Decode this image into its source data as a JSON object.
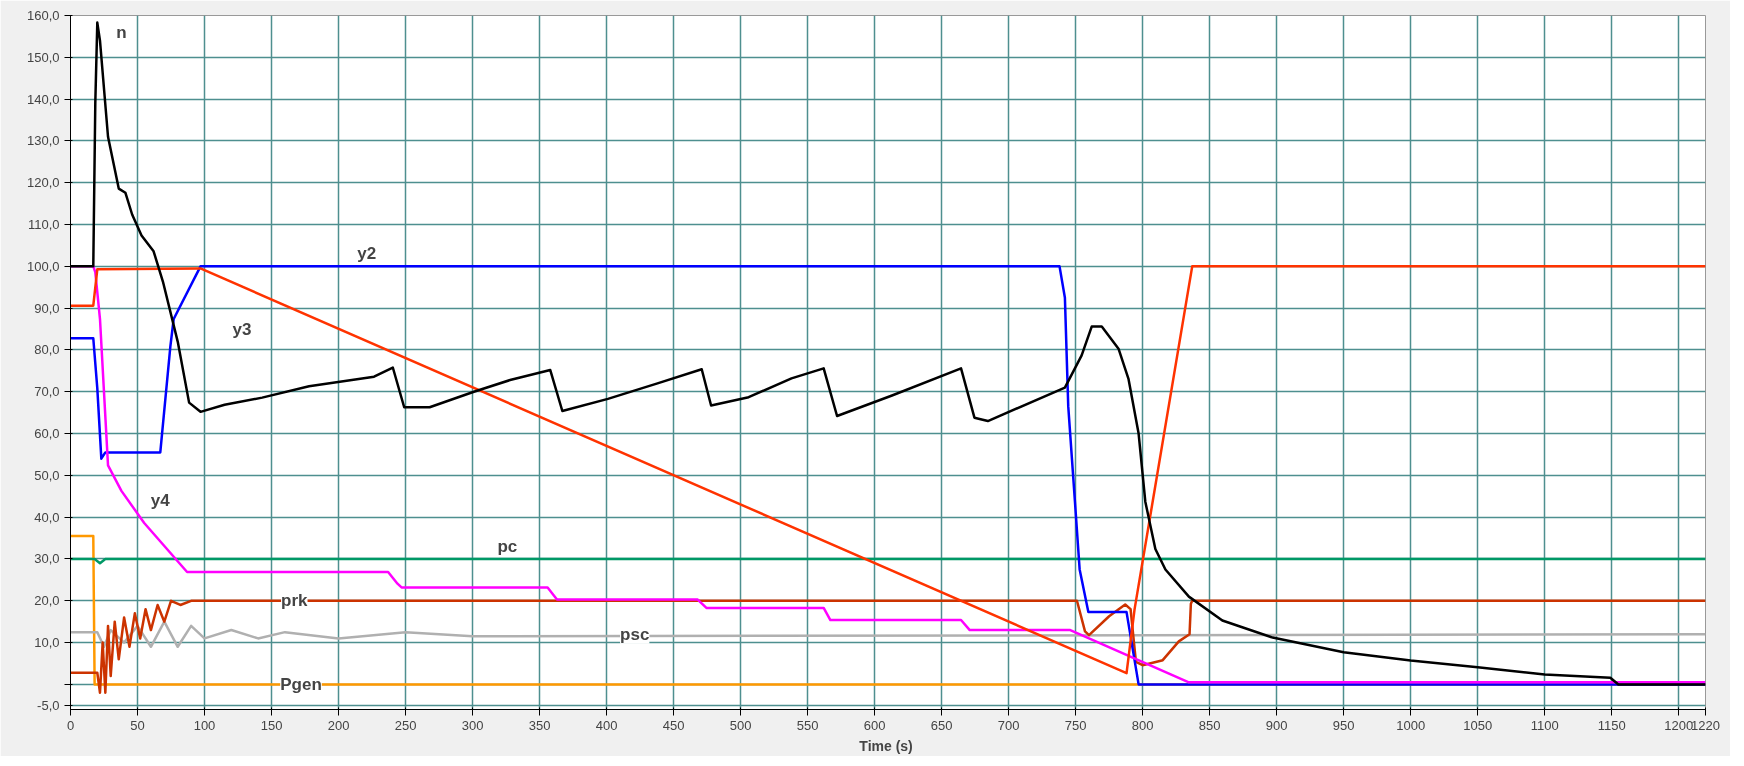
{
  "chart_data": {
    "type": "line",
    "xlabel": "Time  (s)",
    "grid": true,
    "marker": "none",
    "line_style": "solid",
    "xlim": [
      0,
      1220
    ],
    "ylim": [
      -6,
      160
    ],
    "xticks": [
      0,
      50,
      100,
      150,
      200,
      250,
      300,
      350,
      400,
      450,
      500,
      550,
      600,
      650,
      700,
      750,
      800,
      850,
      900,
      950,
      1000,
      1050,
      1100,
      1150,
      1200,
      1220
    ],
    "yticks": [
      {
        "value": -5,
        "label": "-5,0"
      },
      {
        "value": 0,
        "label": null
      },
      {
        "value": 10,
        "label": "10,0"
      },
      {
        "value": 20,
        "label": "20,0"
      },
      {
        "value": 30,
        "label": "30,0"
      },
      {
        "value": 40,
        "label": "40,0"
      },
      {
        "value": 50,
        "label": "50,0"
      },
      {
        "value": 60,
        "label": "60,0"
      },
      {
        "value": 70,
        "label": "70,0"
      },
      {
        "value": 80,
        "label": "80,0"
      },
      {
        "value": 90,
        "label": "90,0"
      },
      {
        "value": 100,
        "label": "100,0"
      },
      {
        "value": 110,
        "label": "110,0"
      },
      {
        "value": 120,
        "label": "120,0"
      },
      {
        "value": 130,
        "label": "130,0"
      },
      {
        "value": 140,
        "label": "140,0"
      },
      {
        "value": 150,
        "label": "150,0"
      },
      {
        "value": 160,
        "label": "160,0"
      }
    ],
    "series": [
      {
        "name": "Pgen",
        "color": "#ff9900",
        "x": [
          0,
          17,
          18,
          1220
        ],
        "values": [
          35.5,
          35.5,
          0,
          0
        ]
      },
      {
        "name": "psc",
        "color": "#b0b0b0",
        "x": [
          0,
          20,
          25,
          30,
          40,
          50,
          60,
          70,
          80,
          90,
          100,
          120,
          140,
          160,
          200,
          250,
          300,
          1220
        ],
        "values": [
          12.5,
          12.5,
          9,
          13,
          10,
          14,
          9,
          15,
          9,
          14,
          11,
          13,
          11,
          12.5,
          11,
          12.5,
          11.5,
          12
        ]
      },
      {
        "name": "prk",
        "color": "#cc3300",
        "x": [
          0,
          17,
          20,
          22,
          24,
          26,
          28,
          30,
          33,
          36,
          40,
          44,
          48,
          52,
          56,
          60,
          65,
          70,
          75,
          82,
          90,
          751,
          757,
          760,
          775,
          787,
          791,
          795,
          800,
          815,
          827,
          835,
          836,
          837,
          1220
        ],
        "values": [
          2.8,
          2.8,
          2.8,
          -2,
          10,
          -2,
          14,
          2,
          15,
          6,
          16,
          9,
          17,
          11,
          18,
          13,
          19,
          15,
          20,
          19,
          20,
          20,
          12.7,
          11.8,
          16.3,
          19.1,
          18,
          5.4,
          4.6,
          5.8,
          10.3,
          12,
          19.3,
          20,
          20
        ]
      },
      {
        "name": "pc",
        "color": "#009966",
        "x": [
          0,
          18,
          22,
          26,
          1220
        ],
        "values": [
          30,
          30,
          29,
          30,
          30
        ]
      },
      {
        "name": "y2",
        "color": "#0000ff",
        "x": [
          0,
          17,
          20,
          23,
          26,
          67,
          74.5,
          77,
          97,
          738,
          742,
          744.5,
          749.5,
          753,
          759.5,
          788,
          797,
          1220
        ],
        "values": [
          82.8,
          82.8,
          70.8,
          54,
          55.5,
          55.5,
          80.8,
          87.4,
          100,
          100,
          92.5,
          66.5,
          43.7,
          27.5,
          17.3,
          17.3,
          0,
          0
        ]
      },
      {
        "name": "y4",
        "color": "#ff00ff",
        "x": [
          0,
          17,
          18.5,
          22,
          28,
          38,
          55,
          87,
          237,
          244,
          247,
          356,
          363,
          468,
          474.5,
          562,
          567,
          664.5,
          671,
          746,
          834.5,
          1220
        ],
        "values": [
          100,
          100,
          98.6,
          87.4,
          52.4,
          46.3,
          38.6,
          26.9,
          26.9,
          24.1,
          23.2,
          23.2,
          20.3,
          20.3,
          18.3,
          18.3,
          15.4,
          15.4,
          13,
          13,
          0.5,
          0.5
        ]
      },
      {
        "name": "y3",
        "color": "#ff3300",
        "x": [
          0,
          17,
          20,
          97,
          788,
          794,
          837,
          1220
        ],
        "values": [
          90.6,
          90.6,
          99.3,
          99.5,
          2.7,
          18,
          100,
          100
        ]
      },
      {
        "name": "n",
        "color": "#000000",
        "x": [
          0,
          17,
          18.5,
          20,
          22,
          28,
          36,
          41,
          46,
          53,
          62,
          69,
          80,
          88.5,
          97,
          115,
          143,
          178,
          226.5,
          240.5,
          249,
          268,
          301,
          328,
          358,
          367,
          401,
          438,
          471,
          478,
          506,
          538,
          562,
          572,
          613,
          664.5,
          674.5,
          684.5,
          742,
          754.5,
          762,
          769.5,
          782,
          789.5,
          797,
          802,
          809.5,
          817,
          834.5,
          859.5,
          897,
          950,
          1000,
          1050,
          1100,
          1149,
          1155,
          1220
        ],
        "values": [
          100,
          100,
          139,
          158.3,
          154,
          131,
          118.6,
          117.6,
          112.4,
          107.4,
          103.6,
          96.3,
          82,
          67.4,
          65.2,
          66.9,
          68.6,
          71.3,
          73.6,
          75.8,
          66.3,
          66.3,
          70,
          72.8,
          75.2,
          65.4,
          68.3,
          72,
          75.4,
          66.7,
          68.7,
          73.2,
          75.6,
          64.2,
          69.1,
          75.6,
          63.8,
          63,
          71,
          78.7,
          85.6,
          85.6,
          80.3,
          73,
          60,
          43.7,
          32.4,
          27.5,
          21,
          15.3,
          11.2,
          7.7,
          5.7,
          4.1,
          2.4,
          1.6,
          0,
          0
        ]
      }
    ]
  }
}
